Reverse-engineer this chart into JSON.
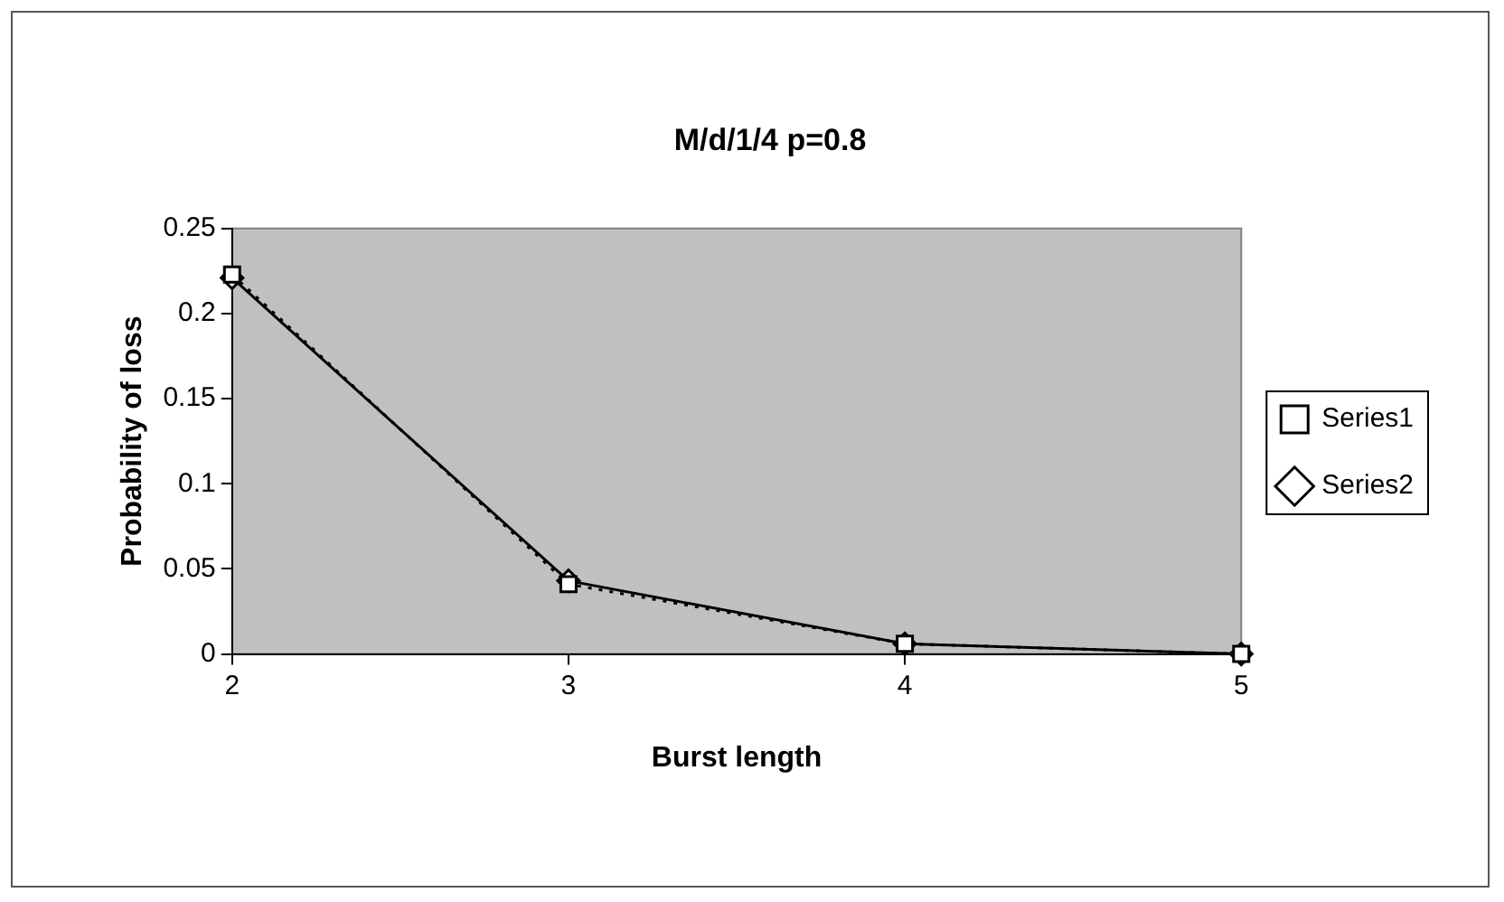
{
  "chart_data": {
    "type": "line",
    "title": "M/d/1/4 p=0.8",
    "xlabel": "Burst length",
    "ylabel": "Probability of loss",
    "x": [
      2,
      3,
      4,
      5
    ],
    "xlim": [
      2,
      5
    ],
    "xticks": [
      2,
      3,
      4,
      5
    ],
    "ylim": [
      0,
      0.25
    ],
    "yticks": [
      0,
      0.05,
      0.1,
      0.15,
      0.2,
      0.25
    ],
    "series": [
      {
        "name": "Series1",
        "color": "#000000",
        "values": [
          0.223,
          0.041,
          0.006,
          0
        ],
        "marker": "square",
        "line_style": "dotted"
      },
      {
        "name": "Series2",
        "color": "#000000",
        "values": [
          0.221,
          0.043,
          0.006,
          0
        ],
        "marker": "diamond",
        "line_style": "solid"
      }
    ],
    "grid": false,
    "legend": "right"
  }
}
